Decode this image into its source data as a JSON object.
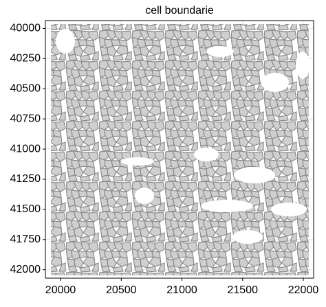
{
  "chart_data": {
    "type": "polygons",
    "title": "cell boundarie",
    "xlim": [
      19875,
      22085
    ],
    "xticks": [
      20000,
      20500,
      21000,
      21500,
      22000
    ],
    "ylim": [
      42070,
      39935
    ],
    "yticks": [
      40000,
      40250,
      40500,
      40750,
      41000,
      41250,
      41500,
      41750,
      42000
    ],
    "grid": true,
    "color": "#cfcfcf"
  }
}
